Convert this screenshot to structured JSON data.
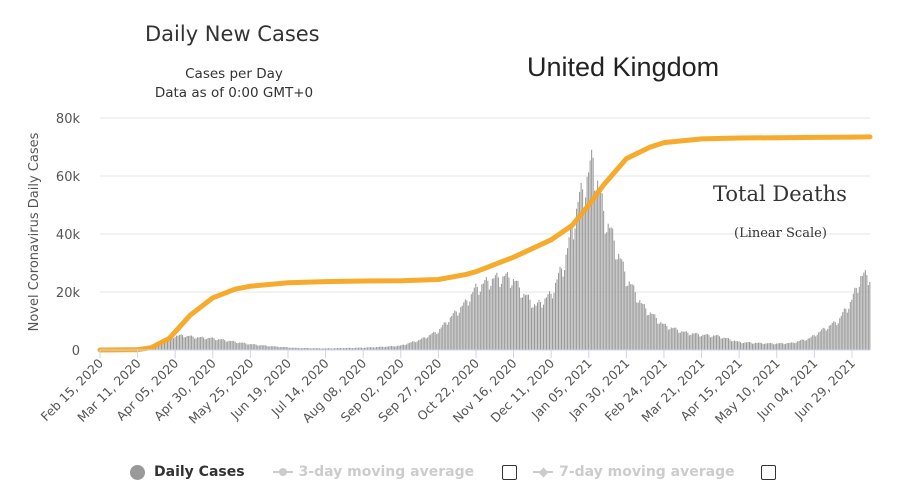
{
  "header": {
    "title": "Daily New Cases",
    "subtitle_line1": "Cases per Day",
    "subtitle_line2": "Data as of 0:00 GMT+0",
    "country": "United Kingdom",
    "overlay_title": "Total Deaths",
    "overlay_subtitle": "(Linear Scale)"
  },
  "legend": {
    "daily_cases": "Daily Cases",
    "ma3": "3-day moving average",
    "ma7": "7-day moving average"
  },
  "colors": {
    "bars": "#999999",
    "deaths_line": "#f5a623",
    "grid": "#e6e6e6"
  },
  "chart_data": {
    "type": "bar",
    "ylabel": "Novel Coronavirus Daily Cases",
    "ylim": [
      0,
      80000
    ],
    "yticks": [
      "0",
      "20k",
      "40k",
      "60k",
      "80k"
    ],
    "x_tick_labels": [
      "Feb 15, 2020",
      "Mar 11, 2020",
      "Apr 05, 2020",
      "Apr 30, 2020",
      "May 25, 2020",
      "Jun 19, 2020",
      "Jul 14, 2020",
      "Aug 08, 2020",
      "Sep 02, 2020",
      "Sep 27, 2020",
      "Oct 22, 2020",
      "Nov 16, 2020",
      "Dec 11, 2020",
      "Jan 05, 2021",
      "Jan 30, 2021",
      "Feb 24, 2021",
      "Mar 21, 2021",
      "Apr 15, 2021",
      "May 10, 2021",
      "Jun 04, 2021",
      "Jun 29, 2021"
    ],
    "x_start": "2020-02-15",
    "x_end": "2021-07-11",
    "days_per_tick": 25,
    "series": [
      {
        "name": "Daily Cases",
        "kind": "bar",
        "points": [
          [
            "2020-02-15",
            0
          ],
          [
            "2020-03-11",
            200
          ],
          [
            "2020-03-20",
            1500
          ],
          [
            "2020-03-28",
            3500
          ],
          [
            "2020-04-05",
            4800
          ],
          [
            "2020-04-10",
            5000
          ],
          [
            "2020-04-20",
            4300
          ],
          [
            "2020-04-30",
            4000
          ],
          [
            "2020-05-10",
            3200
          ],
          [
            "2020-05-25",
            2000
          ],
          [
            "2020-06-10",
            1200
          ],
          [
            "2020-06-25",
            700
          ],
          [
            "2020-07-14",
            550
          ],
          [
            "2020-08-08",
            800
          ],
          [
            "2020-08-25",
            1200
          ],
          [
            "2020-09-02",
            1500
          ],
          [
            "2020-09-15",
            3500
          ],
          [
            "2020-09-27",
            6500
          ],
          [
            "2020-10-05",
            11000
          ],
          [
            "2020-10-15",
            16000
          ],
          [
            "2020-10-22",
            21000
          ],
          [
            "2020-11-01",
            24000
          ],
          [
            "2020-11-10",
            25000
          ],
          [
            "2020-11-16",
            24000
          ],
          [
            "2020-11-23",
            19000
          ],
          [
            "2020-12-01",
            15000
          ],
          [
            "2020-12-11",
            19000
          ],
          [
            "2020-12-20",
            30000
          ],
          [
            "2020-12-29",
            50000
          ],
          [
            "2021-01-05",
            60000
          ],
          [
            "2021-01-08",
            65000
          ],
          [
            "2021-01-15",
            47000
          ],
          [
            "2021-01-22",
            37000
          ],
          [
            "2021-01-30",
            25000
          ],
          [
            "2021-02-10",
            15000
          ],
          [
            "2021-02-24",
            8500
          ],
          [
            "2021-03-10",
            6000
          ],
          [
            "2021-03-21",
            5200
          ],
          [
            "2021-04-01",
            4800
          ],
          [
            "2021-04-15",
            2700
          ],
          [
            "2021-05-01",
            2300
          ],
          [
            "2021-05-10",
            2200
          ],
          [
            "2021-05-20",
            2400
          ],
          [
            "2021-06-01",
            4000
          ],
          [
            "2021-06-10",
            7000
          ],
          [
            "2021-06-20",
            10000
          ],
          [
            "2021-06-29",
            17000
          ],
          [
            "2021-07-05",
            25000
          ],
          [
            "2021-07-11",
            25500
          ]
        ]
      },
      {
        "name": "Total Deaths",
        "kind": "line",
        "points": [
          [
            "2020-02-15",
            0
          ],
          [
            "2020-03-11",
            100
          ],
          [
            "2020-03-20",
            800
          ],
          [
            "2020-04-01",
            4000
          ],
          [
            "2020-04-15",
            12000
          ],
          [
            "2020-04-30",
            18000
          ],
          [
            "2020-05-15",
            21000
          ],
          [
            "2020-05-25",
            22000
          ],
          [
            "2020-06-19",
            23200
          ],
          [
            "2020-07-14",
            23600
          ],
          [
            "2020-08-08",
            23800
          ],
          [
            "2020-09-02",
            23900
          ],
          [
            "2020-09-27",
            24300
          ],
          [
            "2020-10-15",
            26000
          ],
          [
            "2020-10-22",
            27000
          ],
          [
            "2020-11-16",
            32000
          ],
          [
            "2020-12-11",
            38000
          ],
          [
            "2020-12-25",
            43000
          ],
          [
            "2021-01-05",
            50000
          ],
          [
            "2021-01-15",
            57000
          ],
          [
            "2021-01-30",
            66000
          ],
          [
            "2021-02-15",
            70000
          ],
          [
            "2021-02-24",
            71500
          ],
          [
            "2021-03-21",
            72800
          ],
          [
            "2021-04-15",
            73100
          ],
          [
            "2021-05-10",
            73200
          ],
          [
            "2021-06-04",
            73300
          ],
          [
            "2021-06-29",
            73400
          ],
          [
            "2021-07-11",
            73500
          ]
        ]
      }
    ],
    "grid": true,
    "legend_position": "bottom"
  }
}
